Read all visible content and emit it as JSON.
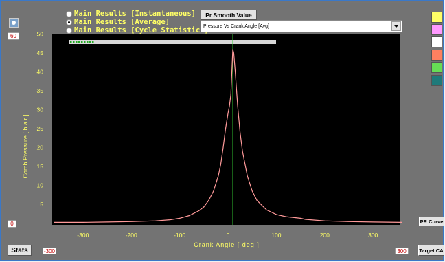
{
  "radios": [
    {
      "label": "Main Results [Instantaneous]",
      "selected": false
    },
    {
      "label": "Main Results [Average]",
      "selected": true
    },
    {
      "label": "Main Results [Cycle Statistics]",
      "selected": false
    }
  ],
  "smooth_button": "Pr Smooth Value",
  "plot_select": "Pressure Vs Crank Angle [Avg]",
  "y_max_tag": "60",
  "y_min_tag": "0",
  "x_min_tag": "-300",
  "x_max_tag": "300",
  "stats_button": "Stats",
  "pr_curve_button": "PR Curve",
  "target_ca_button": "Target CA",
  "swatches": [
    "#ffff66",
    "#ff99ff",
    "#ffffff",
    "#ff8060",
    "#66dd55",
    "#1f7a7a"
  ],
  "chart_data": {
    "type": "line",
    "xlabel": "Crank Angle [ deg ]",
    "ylabel": "Comb Pressure [ b a r ]",
    "xlim": [
      -360,
      360
    ],
    "ylim": [
      0,
      50
    ],
    "x_ticks": [
      -300,
      -200,
      -100,
      0,
      100,
      200,
      300
    ],
    "y_ticks": [
      5,
      10,
      15,
      20,
      25,
      30,
      35,
      40,
      45,
      50
    ],
    "line_color": "#ff9a9a",
    "marker_line_x": 10,
    "marker_color": "#33cc33",
    "series": [
      {
        "x": [
          -360,
          -300,
          -250,
          -200,
          -150,
          -120,
          -100,
          -80,
          -60,
          -50,
          -40,
          -30,
          -20,
          -15,
          -10,
          -5,
          0,
          3,
          6,
          8,
          10,
          12,
          15,
          20,
          25,
          30,
          40,
          50,
          60,
          80,
          100,
          120,
          150,
          160,
          180,
          200,
          250,
          300,
          360
        ],
        "y": [
          0.2,
          0.2,
          0.3,
          0.4,
          0.6,
          0.9,
          1.3,
          2.0,
          3.3,
          4.3,
          6.0,
          8.5,
          12.5,
          15.5,
          20.0,
          25.0,
          29.0,
          31.0,
          34.0,
          40.0,
          46.0,
          45.0,
          40.0,
          31.0,
          24.0,
          19.0,
          12.5,
          8.5,
          6.0,
          3.5,
          2.3,
          1.7,
          1.3,
          1.0,
          0.8,
          0.6,
          0.4,
          0.3,
          0.2
        ]
      }
    ]
  }
}
